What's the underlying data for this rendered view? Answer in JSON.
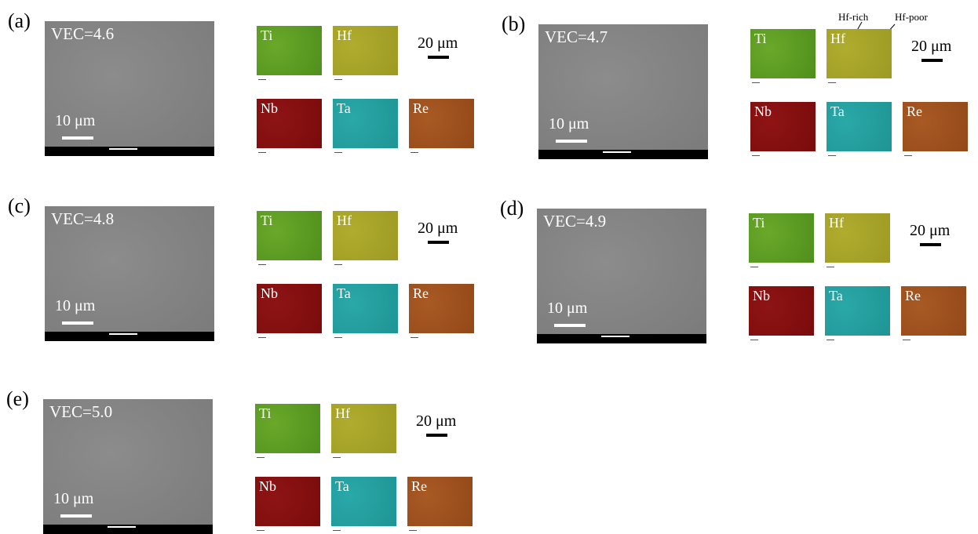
{
  "panels": [
    {
      "label": "(a)",
      "vec": "VEC=4.6",
      "sem_scale": "10 μm",
      "map_scale": "20 μm",
      "maps": [
        "Ti",
        "Hf",
        "Nb",
        "Ta",
        "Re"
      ]
    },
    {
      "label": "(b)",
      "vec": "VEC=4.7",
      "sem_scale": "10 μm",
      "map_scale": "20 μm",
      "maps": [
        "Ti",
        "Hf",
        "Nb",
        "Ta",
        "Re"
      ]
    },
    {
      "label": "(c)",
      "vec": "VEC=4.8",
      "sem_scale": "10 μm",
      "map_scale": "20 μm",
      "maps": [
        "Ti",
        "Hf",
        "Nb",
        "Ta",
        "Re"
      ]
    },
    {
      "label": "(d)",
      "vec": "VEC=4.9",
      "sem_scale": "10 μm",
      "map_scale": "20 μm",
      "maps": [
        "Ti",
        "Hf",
        "Nb",
        "Ta",
        "Re"
      ]
    },
    {
      "label": "(e)",
      "vec": "VEC=5.0",
      "sem_scale": "10 μm",
      "map_scale": "20 μm",
      "maps": [
        "Ti",
        "Hf",
        "Nb",
        "Ta",
        "Re"
      ]
    }
  ],
  "annotations": [
    "Hf-rich",
    "Hf-poor"
  ]
}
